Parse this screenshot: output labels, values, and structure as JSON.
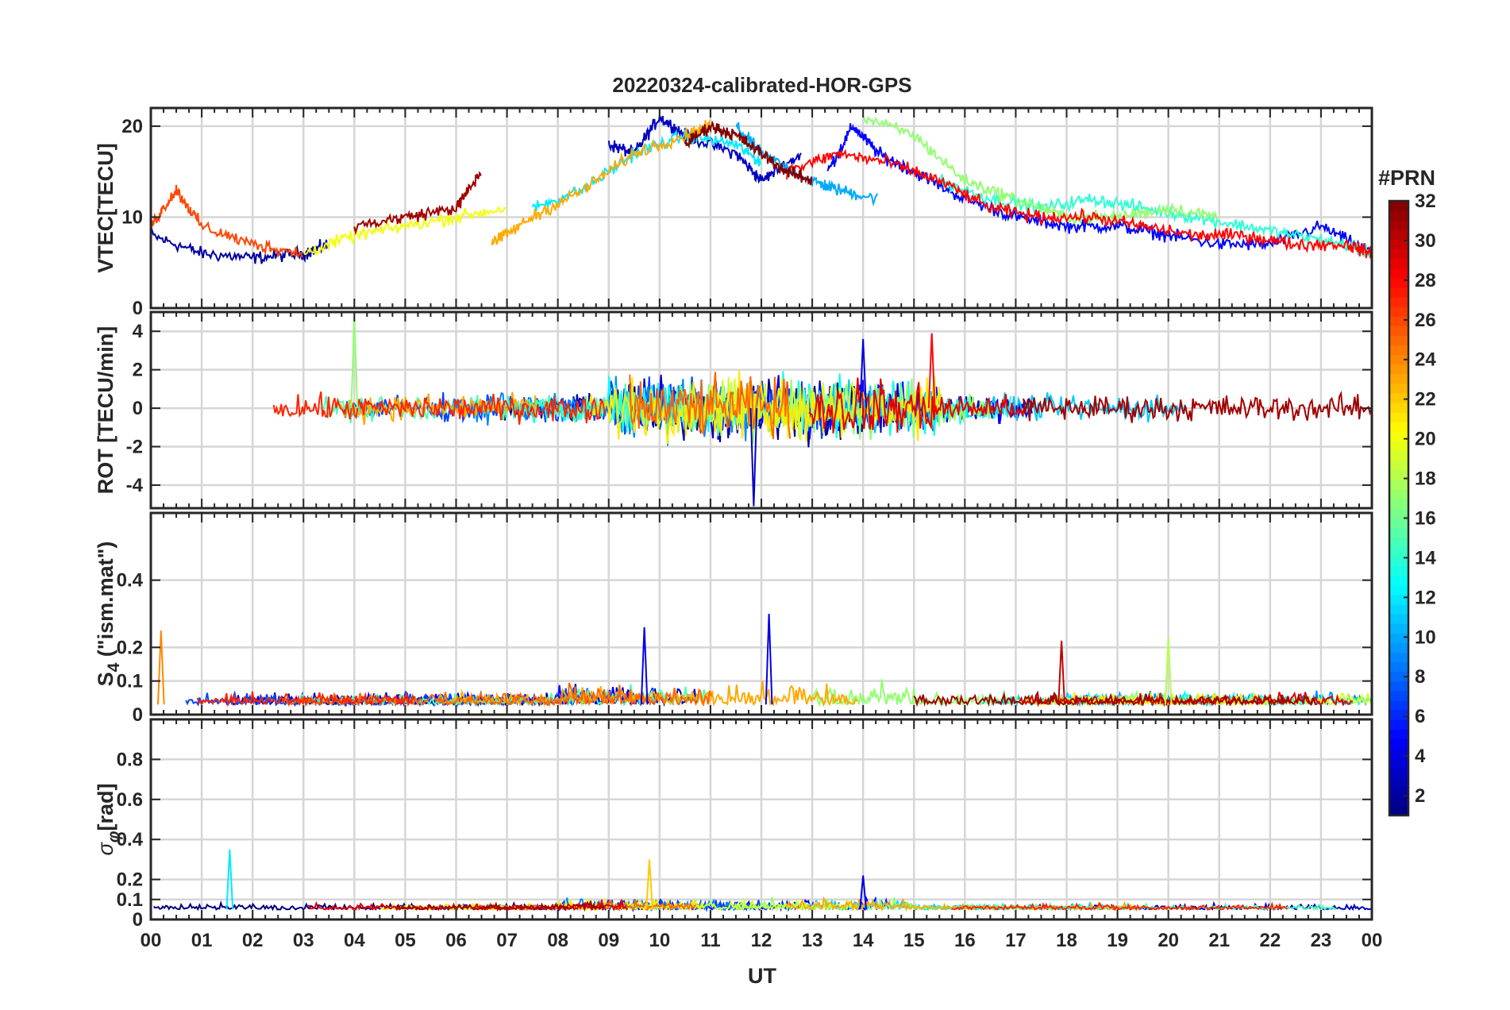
{
  "chart_data": {
    "type": "line",
    "title": "20220324-calibrated-HOR-GPS",
    "xlabel": "UT",
    "x_tick_labels": [
      "00",
      "01",
      "02",
      "03",
      "04",
      "05",
      "06",
      "07",
      "08",
      "09",
      "10",
      "11",
      "12",
      "13",
      "14",
      "15",
      "16",
      "17",
      "18",
      "19",
      "20",
      "21",
      "22",
      "23",
      "00"
    ],
    "xlim": [
      0,
      24
    ],
    "grid": true,
    "colorbar": {
      "label": "#PRN",
      "range": [
        1,
        32
      ],
      "ticks": [
        2,
        4,
        6,
        8,
        10,
        12,
        14,
        16,
        18,
        20,
        22,
        24,
        26,
        28,
        30,
        32
      ],
      "colormap": "jet"
    },
    "panels": [
      {
        "id": "vtec",
        "ylabel": "VTEC[TECU]",
        "ylim": [
          0,
          22
        ],
        "yticks": [
          0,
          10,
          20
        ],
        "series_by_prn": [
          {
            "prn": 2,
            "x": [
              0.0,
              1.0,
              2.0,
              3.0,
              3.5
            ],
            "y": [
              8,
              6,
              5.5,
              6,
              7
            ]
          },
          {
            "prn": 3,
            "x": [
              9.0,
              9.5,
              10.0,
              10.5,
              11.5,
              12.0,
              12.8
            ],
            "y": [
              18,
              17,
              21,
              19,
              17,
              14,
              17
            ]
          },
          {
            "prn": 5,
            "x": [
              13.3,
              13.8,
              14.3,
              15.0,
              16.0,
              17.0,
              18.0,
              19.0,
              20.0,
              21.0,
              22.0,
              23.0,
              24.0
            ],
            "y": [
              15,
              20,
              17,
              15,
              12,
              10,
              9,
              9,
              8,
              7,
              7,
              9,
              6
            ]
          },
          {
            "prn": 10,
            "x": [
              11.5,
              12.0,
              13.0,
              13.5,
              14.3
            ],
            "y": [
              20,
              17,
              14,
              13,
              12
            ]
          },
          {
            "prn": 12,
            "x": [
              7.5,
              8.5,
              9.5,
              10.5,
              11.5,
              12.0
            ],
            "y": [
              11,
              13,
              17,
              19,
              18,
              16
            ]
          },
          {
            "prn": 14,
            "x": [
              15.5,
              16.5,
              17.5,
              18.5,
              19.5,
              20.5,
              21.5,
              22.5,
              23.5,
              24.0
            ],
            "y": [
              14,
              12,
              11,
              12,
              11,
              10,
              9,
              8,
              7,
              6
            ]
          },
          {
            "prn": 17,
            "x": [
              14.0,
              15.0,
              16.0,
              17.0,
              18.0,
              19.0,
              20.0,
              21.0
            ],
            "y": [
              21,
              19,
              14,
              12,
              10,
              10,
              11,
              10
            ]
          },
          {
            "prn": 20,
            "x": [
              3.0,
              4.0,
              5.0,
              6.0,
              7.0
            ],
            "y": [
              6,
              8,
              9,
              10,
              11
            ]
          },
          {
            "prn": 23,
            "x": [
              6.7,
              7.5,
              8.5,
              9.5,
              10.5,
              11.0
            ],
            "y": [
              7,
              10,
              13,
              17,
              19,
              20
            ]
          },
          {
            "prn": 26,
            "x": [
              0.0,
              0.5,
              1.0,
              2.0,
              3.0
            ],
            "y": [
              9,
              13,
              9,
              7,
              6
            ]
          },
          {
            "prn": 28,
            "x": [
              12.5,
              13.5,
              14.5,
              15.5,
              16.5,
              17.5,
              18.5,
              19.5,
              20.5,
              21.5,
              22.5,
              23.5,
              24.0
            ],
            "y": [
              15,
              17,
              16,
              14,
              11,
              10,
              10,
              9,
              8,
              8,
              7,
              7,
              6
            ]
          },
          {
            "prn": 31,
            "x": [
              4.0,
              5.0,
              6.0,
              6.5
            ],
            "y": [
              9,
              10,
              11,
              15
            ]
          },
          {
            "prn": 32,
            "x": [
              10.5,
              11.0,
              11.5,
              12.0,
              12.5,
              13.0
            ],
            "y": [
              18,
              20,
              19,
              17,
              15,
              14
            ]
          }
        ]
      },
      {
        "id": "rot",
        "ylabel": "ROT [TECU/min]",
        "ylim": [
          -5.2,
          5.0
        ],
        "yticks": [
          -4,
          -2,
          0,
          2,
          4
        ],
        "notable_peaks": [
          {
            "x": 4.0,
            "y": 4.8,
            "prn": 17
          },
          {
            "x": 11.85,
            "y": -5.1,
            "prn": 3
          },
          {
            "x": 15.35,
            "y": 3.9,
            "prn": 28
          },
          {
            "x": 14.0,
            "y": 3.6,
            "prn": 4
          }
        ]
      },
      {
        "id": "s4",
        "ylabel": "S4 (\"ism.mat\")",
        "ylabel_main": "S",
        "ylabel_sub": "4",
        "ylabel_rest": " (\"ism.mat\")",
        "ylim": [
          0,
          0.6
        ],
        "yticks": [
          0,
          0.1,
          0.2,
          0.4
        ],
        "notable_peaks": [
          {
            "x": 0.2,
            "y": 0.25,
            "prn": 24
          },
          {
            "x": 12.15,
            "y": 0.3,
            "prn": 4
          },
          {
            "x": 9.7,
            "y": 0.26,
            "prn": 4
          },
          {
            "x": 17.9,
            "y": 0.22,
            "prn": 30
          },
          {
            "x": 20.0,
            "y": 0.23,
            "prn": 18
          }
        ]
      },
      {
        "id": "sigma_phi",
        "ylabel": "σφ[rad]",
        "ylabel_main": "σ",
        "ylabel_sub": "φ",
        "ylabel_rest": "[rad]",
        "ylim": [
          0,
          1.0
        ],
        "yticks": [
          0,
          0.1,
          0.2,
          0.4,
          0.6,
          0.8
        ],
        "notable_peaks": [
          {
            "x": 1.55,
            "y": 0.35,
            "prn": 12
          },
          {
            "x": 9.8,
            "y": 0.3,
            "prn": 22
          },
          {
            "x": 14.0,
            "y": 0.22,
            "prn": 4
          }
        ]
      }
    ]
  }
}
